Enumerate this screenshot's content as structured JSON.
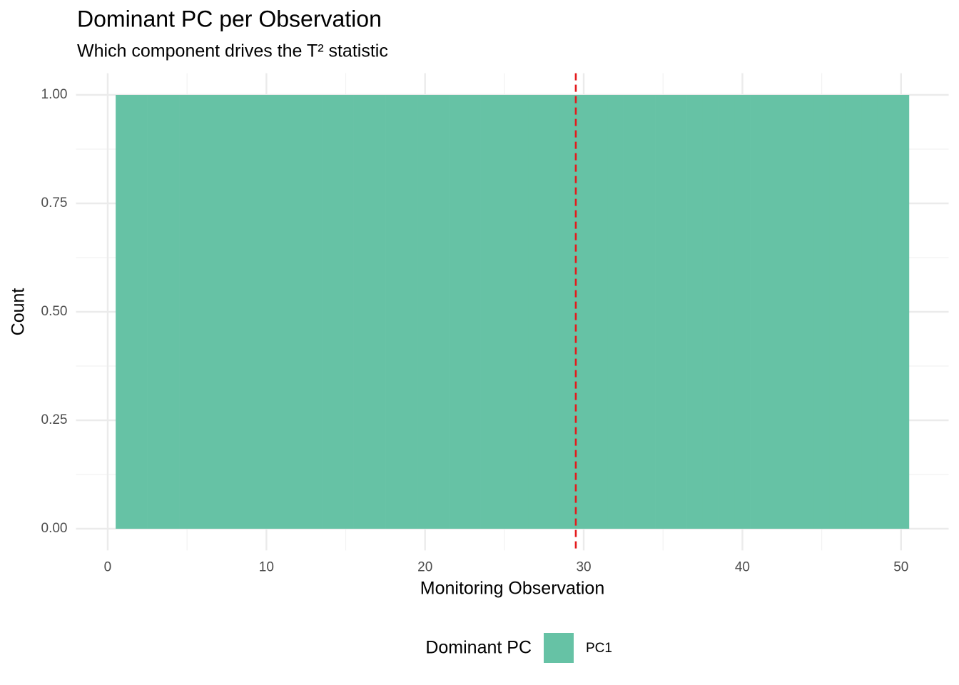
{
  "chart_data": {
    "type": "bar",
    "title": "Dominant PC per Observation",
    "subtitle": "Which component drives the T² statistic",
    "x_label": "Monitoring Observation",
    "y_label": "Count",
    "x": [
      1,
      2,
      3,
      4,
      5,
      6,
      7,
      8,
      9,
      10,
      11,
      12,
      13,
      14,
      15,
      16,
      17,
      18,
      19,
      20,
      21,
      22,
      23,
      24,
      25,
      26,
      27,
      28,
      29,
      30,
      31,
      32,
      33,
      34,
      35,
      36,
      37,
      38,
      39,
      40,
      41,
      42,
      43,
      44,
      45,
      46,
      47,
      48,
      49,
      50
    ],
    "series": [
      {
        "name": "PC1",
        "color": "#66c2a5",
        "values": [
          1,
          1,
          1,
          1,
          1,
          1,
          1,
          1,
          1,
          1,
          1,
          1,
          1,
          1,
          1,
          1,
          1,
          1,
          1,
          1,
          1,
          1,
          1,
          1,
          1,
          1,
          1,
          1,
          1,
          1,
          1,
          1,
          1,
          1,
          1,
          1,
          1,
          1,
          1,
          1,
          1,
          1,
          1,
          1,
          1,
          1,
          1,
          1,
          1,
          1
        ]
      }
    ],
    "xlim": [
      -2,
      53
    ],
    "ylim": [
      -0.05,
      1.05
    ],
    "xticks": [
      0,
      10,
      20,
      30,
      40,
      50
    ],
    "xminor": [
      5,
      15,
      25,
      35,
      45
    ],
    "yticks": [
      {
        "value": 0,
        "label": "0.00"
      },
      {
        "value": 0.25,
        "label": "0.25"
      },
      {
        "value": 0.5,
        "label": "0.50"
      },
      {
        "value": 0.75,
        "label": "0.75"
      },
      {
        "value": 1,
        "label": "1.00"
      }
    ],
    "yminor": [
      0.125,
      0.375,
      0.625,
      0.875
    ],
    "vline": {
      "value": 29.5,
      "color": "#e41a1c"
    },
    "legend_title": "Dominant PC",
    "legend_position": "bottom",
    "grid": true
  }
}
